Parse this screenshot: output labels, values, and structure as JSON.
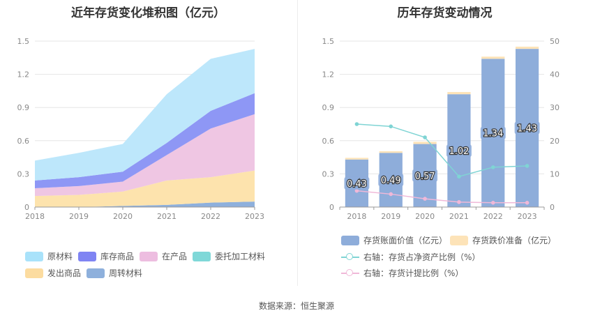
{
  "footer": "数据来源：恒生聚源",
  "chart_data": [
    {
      "type": "area",
      "stacked": true,
      "title": "近年存货变化堆积图（亿元）",
      "categories": [
        "2018",
        "2019",
        "2020",
        "2021",
        "2022",
        "2023"
      ],
      "ylim": [
        0,
        1.5
      ],
      "yticks": [
        "0",
        "0.3",
        "0.6",
        "0.9",
        "1.2",
        "1.5"
      ],
      "grid": true,
      "series": [
        {
          "name": "周转材料",
          "color": "#8eb0dc",
          "values": [
            0.0,
            0.0,
            0.01,
            0.02,
            0.04,
            0.05
          ]
        },
        {
          "name": "发出商品",
          "color": "#fde3ad",
          "values": [
            0.1,
            0.11,
            0.13,
            0.22,
            0.23,
            0.28
          ]
        },
        {
          "name": "委托加工材料",
          "color": "#7fd8d8",
          "values": [
            0.0,
            0.0,
            0.0,
            0.0,
            0.0,
            0.0
          ]
        },
        {
          "name": "在产品",
          "color": "#efc6e3",
          "values": [
            0.07,
            0.08,
            0.09,
            0.23,
            0.44,
            0.51
          ]
        },
        {
          "name": "库存商品",
          "color": "#8e97f5",
          "values": [
            0.07,
            0.08,
            0.09,
            0.11,
            0.16,
            0.19
          ]
        },
        {
          "name": "原材料",
          "color": "#bde7fb",
          "values": [
            0.18,
            0.22,
            0.25,
            0.44,
            0.47,
            0.4
          ]
        }
      ],
      "legend": [
        {
          "name": "原材料",
          "color": "#a9e2fa"
        },
        {
          "name": "库存商品",
          "color": "#7f84f3"
        },
        {
          "name": "在产品",
          "color": "#edbde0"
        },
        {
          "name": "委托加工材料",
          "color": "#7fd8d8"
        },
        {
          "name": "发出商品",
          "color": "#fcdca0"
        },
        {
          "name": "周转材料",
          "color": "#8eb0dc"
        }
      ]
    },
    {
      "type": "bar",
      "title": "历年存货变动情况",
      "categories": [
        "2018",
        "2019",
        "2020",
        "2021",
        "2022",
        "2023"
      ],
      "ylim": [
        0,
        1.5
      ],
      "yticks": [
        "0",
        "0.3",
        "0.6",
        "0.9",
        "1.2",
        "1.5"
      ],
      "y2lim": [
        0,
        50
      ],
      "y2ticks": [
        "0",
        "10",
        "20",
        "30",
        "40",
        "50"
      ],
      "grid": true,
      "series": [
        {
          "name": "存货账面价值（亿元）",
          "color": "#8eadda",
          "values": [
            0.43,
            0.49,
            0.57,
            1.02,
            1.34,
            1.43
          ],
          "labels": [
            "0.43",
            "0.49",
            "0.57",
            "1.02",
            "1.34",
            "1.43"
          ]
        },
        {
          "name": "存货跌价准备（亿元）",
          "color": "#fde3b8",
          "values": [
            0.015,
            0.015,
            0.02,
            0.02,
            0.02,
            0.02
          ]
        },
        {
          "name": "右轴：存货占净资产比例（%）",
          "color": "#7fd4d4",
          "axis": "right",
          "values": [
            25,
            24.3,
            21,
            9.2,
            12,
            12.4
          ]
        },
        {
          "name": "右轴：存货计提比例（%）",
          "color": "#f0b8d8",
          "axis": "right",
          "values": [
            4.9,
            3.9,
            2.5,
            1.5,
            1.3,
            1.3
          ]
        }
      ]
    }
  ]
}
